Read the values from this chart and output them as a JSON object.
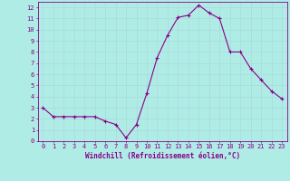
{
  "x": [
    0,
    1,
    2,
    3,
    4,
    5,
    6,
    7,
    8,
    9,
    10,
    11,
    12,
    13,
    14,
    15,
    16,
    17,
    18,
    19,
    20,
    21,
    22,
    23
  ],
  "y": [
    3.0,
    2.2,
    2.2,
    2.2,
    2.2,
    2.2,
    1.8,
    1.5,
    0.3,
    1.5,
    4.3,
    7.5,
    9.5,
    11.1,
    11.3,
    12.2,
    11.5,
    11.0,
    8.0,
    8.0,
    6.5,
    5.5,
    4.5,
    3.8
  ],
  "line_color": "#880088",
  "marker": "+",
  "markersize": 3,
  "linewidth": 0.8,
  "xlabel": "Windchill (Refroidissement éolien,°C)",
  "xlabel_fontsize": 5.5,
  "xlim": [
    -0.5,
    23.5
  ],
  "ylim": [
    0,
    12.5
  ],
  "yticks": [
    0,
    1,
    2,
    3,
    4,
    5,
    6,
    7,
    8,
    9,
    10,
    11,
    12
  ],
  "xticks": [
    0,
    1,
    2,
    3,
    4,
    5,
    6,
    7,
    8,
    9,
    10,
    11,
    12,
    13,
    14,
    15,
    16,
    17,
    18,
    19,
    20,
    21,
    22,
    23
  ],
  "background_color": "#b0ece6",
  "plot_bg_color": "#b0ece6",
  "grid_color": "#aadddd",
  "tick_fontsize": 5,
  "tick_color": "#880088",
  "label_color": "#880088",
  "spine_color": "#880088"
}
